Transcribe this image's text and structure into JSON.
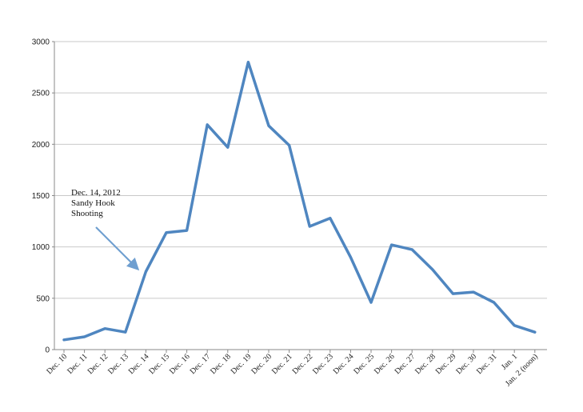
{
  "chart_data": {
    "type": "line",
    "title": "",
    "xlabel": "",
    "ylabel": "",
    "ylim": [
      0,
      3000
    ],
    "yticks": [
      0,
      500,
      1000,
      1500,
      2000,
      2500,
      3000
    ],
    "grid": true,
    "legend": "none",
    "categories": [
      "Dec. 10",
      "Dec. 11",
      "Dec. 12",
      "Dec. 13",
      "Dec. 14",
      "Dec. 15",
      "Dec. 16",
      "Dec. 17",
      "Dec. 18",
      "Dec. 19",
      "Dec. 20",
      "Dec. 21",
      "Dec. 22",
      "Dec. 23",
      "Dec. 24",
      "Dec. 25",
      "Dec. 26",
      "Dec. 27",
      "Dec. 28",
      "Dec. 29",
      "Dec. 30",
      "Dec. 31",
      "Jan. 1",
      "Jan. 2 (noon)"
    ],
    "series": [
      {
        "color": "#4f86c0",
        "values": [
          95,
          125,
          205,
          170,
          760,
          1140,
          1160,
          2190,
          1970,
          2800,
          2180,
          1990,
          1200,
          1280,
          900,
          460,
          1020,
          975,
          780,
          545,
          560,
          460,
          235,
          170
        ]
      }
    ],
    "annotation": {
      "lines": [
        "Dec. 14, 2012",
        "Sandy Hook",
        "Shooting"
      ],
      "target_category": "Dec. 14",
      "arrow_color": "#6f9fd0"
    }
  }
}
